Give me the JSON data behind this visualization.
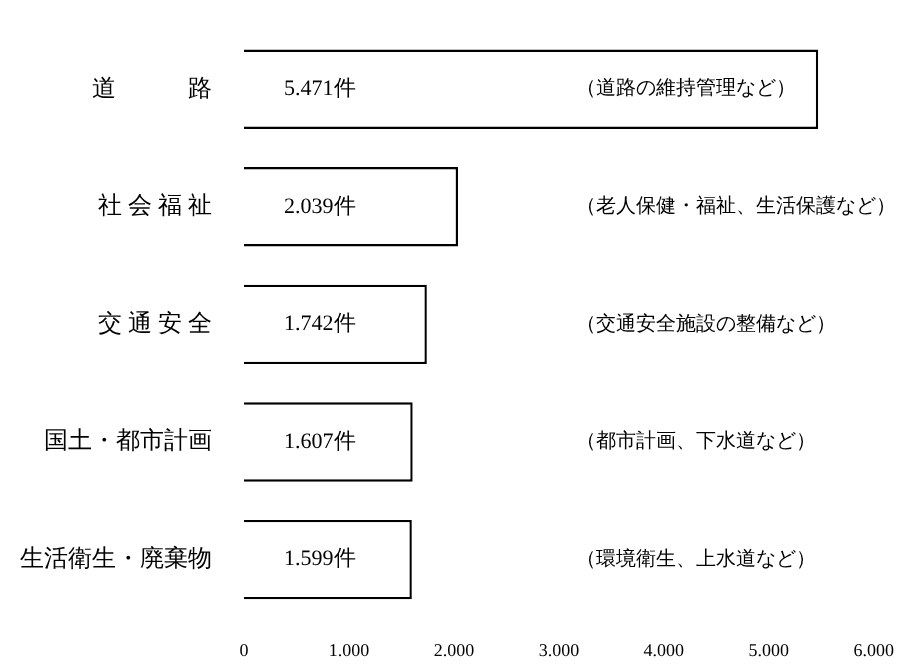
{
  "chart_data": {
    "type": "bar",
    "orientation": "horizontal",
    "categories": [
      "道　　　路",
      "社 会 福 祉",
      "交 通 安 全",
      "国土・都市計画",
      "生活衛生・廃棄物"
    ],
    "values": [
      5471,
      2039,
      1742,
      1607,
      1599
    ],
    "value_labels": [
      "5.471件",
      "2.039件",
      "1.742件",
      "1.607件",
      "1.599件"
    ],
    "color": "#ffffff",
    "xlim": [
      0,
      6000
    ],
    "xticks": [
      0,
      {
        "value": 1000,
        "label": "1.000"
      },
      {
        "value": 2000,
        "label": "2.000"
      },
      {
        "value": 3000,
        "label": "3.000"
      },
      {
        "value": 4000,
        "label": "4.000"
      },
      {
        "value": 5000,
        "label": "5.000"
      },
      {
        "value": 6000,
        "label": "6.000"
      }
    ],
    "annotations": [
      "（道路の維持管理など）",
      "（老人保健・福祉、生活保護など）",
      "（交通安全施設の整備など）",
      "（都市計画、下水道など）",
      "（環境衛生、上水道など）"
    ],
    "grid": false,
    "legend": false
  }
}
